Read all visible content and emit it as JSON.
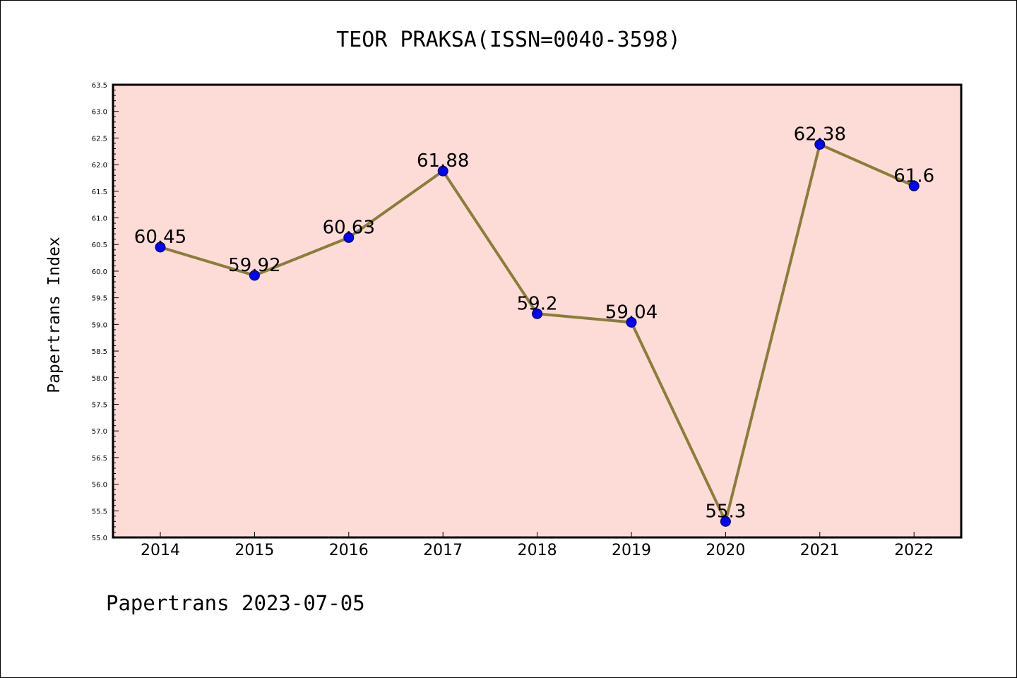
{
  "chart_data": {
    "type": "line",
    "title": "TEOR PRAKSA(ISSN=0040-3598)",
    "xlabel": "",
    "ylabel": "Papertrans Index",
    "categories": [
      "2014",
      "2015",
      "2016",
      "2017",
      "2018",
      "2019",
      "2020",
      "2021",
      "2022"
    ],
    "values": [
      60.45,
      59.92,
      60.63,
      61.88,
      59.2,
      59.04,
      55.3,
      62.38,
      61.6
    ],
    "data_labels": [
      "60.45",
      "59.92",
      "60.63",
      "61.88",
      "59.2",
      "59.04",
      "55.3",
      "62.38",
      "61.6"
    ],
    "ylim": [
      55.0,
      63.5
    ],
    "yticks": [
      "55.0",
      "55.5",
      "56.0",
      "56.5",
      "57.0",
      "57.5",
      "58.0",
      "58.5",
      "59.0",
      "59.5",
      "60.0",
      "60.5",
      "61.0",
      "61.5",
      "62.0",
      "62.5",
      "63.0",
      "63.5"
    ],
    "grid": false,
    "colors": {
      "plot_background": "#fddcd8",
      "line": "#8b7d3a",
      "marker": "#0000ff"
    },
    "footer": "Papertrans 2023-07-05"
  }
}
